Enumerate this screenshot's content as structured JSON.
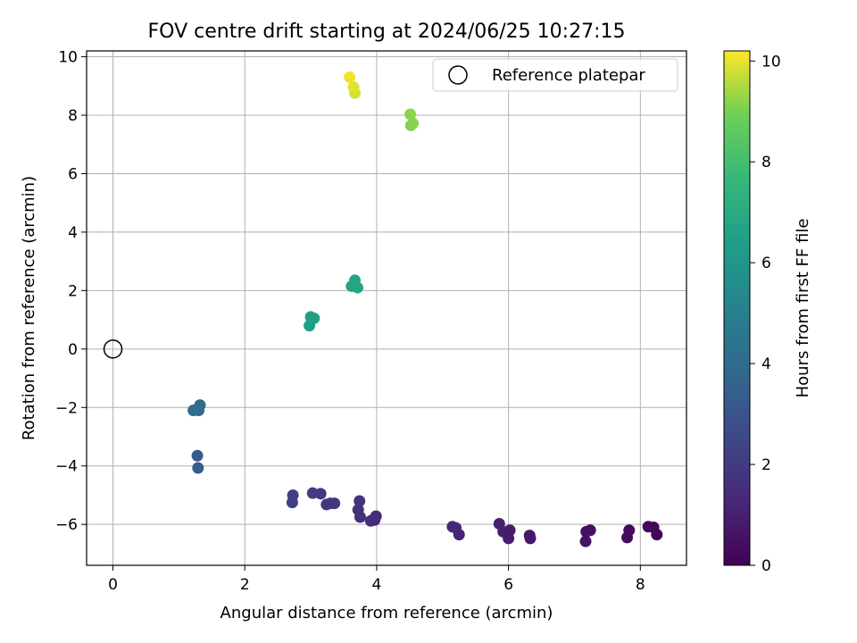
{
  "chart_data": {
    "type": "scatter",
    "title": "FOV centre drift starting at 2024/06/25 10:27:15",
    "xlabel": "Angular distance from reference (arcmin)",
    "ylabel": "Rotation from reference (arcmin)",
    "xlim": [
      -0.4,
      8.7
    ],
    "ylim": [
      -7.4,
      10.2
    ],
    "xticks": [
      0,
      2,
      4,
      6,
      8
    ],
    "yticks": [
      -6,
      -4,
      -2,
      0,
      2,
      4,
      6,
      8,
      10
    ],
    "grid": true,
    "legend": {
      "position": "top-right",
      "label": "Reference platepar"
    },
    "reference_point": {
      "x": 0,
      "y": 0
    },
    "colorbar": {
      "label": "Hours from first FF file",
      "min": 0,
      "max": 10.2,
      "ticks": [
        0,
        2,
        4,
        6,
        8,
        10
      ],
      "colormap": "viridis"
    },
    "points": [
      {
        "x": 8.25,
        "y": -6.35,
        "c": 0.1
      },
      {
        "x": 8.2,
        "y": -6.1,
        "c": 0.15
      },
      {
        "x": 8.12,
        "y": -6.08,
        "c": 0.2
      },
      {
        "x": 7.83,
        "y": -6.2,
        "c": 0.3
      },
      {
        "x": 7.8,
        "y": -6.45,
        "c": 0.35
      },
      {
        "x": 7.24,
        "y": -6.2,
        "c": 0.45
      },
      {
        "x": 7.18,
        "y": -6.25,
        "c": 0.5
      },
      {
        "x": 7.17,
        "y": -6.58,
        "c": 0.55
      },
      {
        "x": 6.32,
        "y": -6.38,
        "c": 0.7
      },
      {
        "x": 6.33,
        "y": -6.48,
        "c": 0.75
      },
      {
        "x": 6.02,
        "y": -6.2,
        "c": 0.85
      },
      {
        "x": 6.0,
        "y": -6.48,
        "c": 0.9
      },
      {
        "x": 5.92,
        "y": -6.25,
        "c": 0.95
      },
      {
        "x": 5.86,
        "y": -5.98,
        "c": 1.0
      },
      {
        "x": 5.25,
        "y": -6.35,
        "c": 1.15
      },
      {
        "x": 5.2,
        "y": -6.12,
        "c": 1.2
      },
      {
        "x": 5.15,
        "y": -6.08,
        "c": 1.25
      },
      {
        "x": 3.99,
        "y": -5.72,
        "c": 1.4
      },
      {
        "x": 3.97,
        "y": -5.85,
        "c": 1.45
      },
      {
        "x": 3.91,
        "y": -5.88,
        "c": 1.5
      },
      {
        "x": 3.75,
        "y": -5.75,
        "c": 1.55
      },
      {
        "x": 3.72,
        "y": -5.5,
        "c": 1.6
      },
      {
        "x": 3.74,
        "y": -5.2,
        "c": 1.65
      },
      {
        "x": 3.36,
        "y": -5.28,
        "c": 1.8
      },
      {
        "x": 3.3,
        "y": -5.28,
        "c": 1.85
      },
      {
        "x": 3.24,
        "y": -5.32,
        "c": 1.9
      },
      {
        "x": 3.15,
        "y": -4.95,
        "c": 1.95
      },
      {
        "x": 3.03,
        "y": -4.93,
        "c": 2.0
      },
      {
        "x": 2.73,
        "y": -5.0,
        "c": 2.2
      },
      {
        "x": 2.72,
        "y": -5.25,
        "c": 2.25
      },
      {
        "x": 1.28,
        "y": -3.65,
        "c": 3.3
      },
      {
        "x": 1.29,
        "y": -4.07,
        "c": 3.35
      },
      {
        "x": 1.3,
        "y": -2.1,
        "c": 3.9
      },
      {
        "x": 1.32,
        "y": -1.92,
        "c": 3.95
      },
      {
        "x": 1.22,
        "y": -2.1,
        "c": 4.0
      },
      {
        "x": 2.98,
        "y": 0.8,
        "c": 6.4
      },
      {
        "x": 3.05,
        "y": 1.05,
        "c": 6.45
      },
      {
        "x": 3.0,
        "y": 1.1,
        "c": 6.5
      },
      {
        "x": 3.62,
        "y": 2.15,
        "c": 6.6
      },
      {
        "x": 3.67,
        "y": 2.35,
        "c": 6.7
      },
      {
        "x": 3.71,
        "y": 2.1,
        "c": 6.75
      },
      {
        "x": 4.52,
        "y": 7.65,
        "c": 9.1
      },
      {
        "x": 4.55,
        "y": 7.72,
        "c": 9.15
      },
      {
        "x": 4.51,
        "y": 8.03,
        "c": 9.2
      },
      {
        "x": 3.67,
        "y": 8.76,
        "c": 9.85
      },
      {
        "x": 3.65,
        "y": 8.96,
        "c": 9.95
      },
      {
        "x": 3.59,
        "y": 9.3,
        "c": 10.05
      }
    ]
  }
}
